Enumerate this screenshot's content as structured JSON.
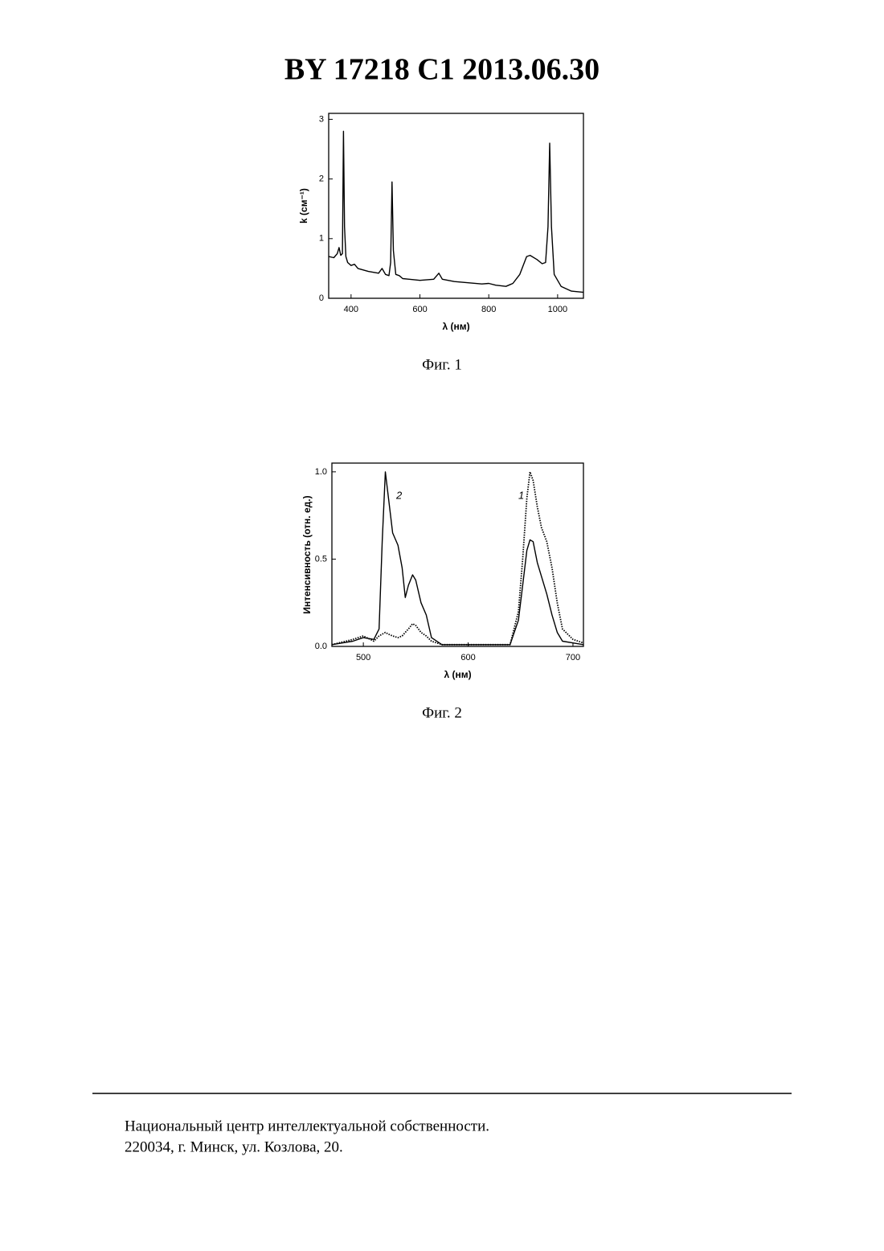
{
  "header": {
    "title": "BY  17218  C1  2013.06.30"
  },
  "chart_data": [
    {
      "type": "line",
      "caption": "Фиг. 1",
      "xlabel": "λ  (нм)",
      "ylabel": "k  (см⁻¹)",
      "x": [
        335,
        350,
        360,
        365,
        370,
        375,
        378,
        381,
        385,
        390,
        400,
        410,
        420,
        450,
        480,
        490,
        500,
        510,
        515,
        519,
        523,
        530,
        540,
        550,
        600,
        640,
        655,
        665,
        700,
        780,
        800,
        820,
        850,
        870,
        890,
        910,
        920,
        940,
        955,
        965,
        972,
        977,
        982,
        990,
        1010,
        1040,
        1075
      ],
      "values": [
        0.7,
        0.68,
        0.75,
        0.85,
        0.72,
        0.75,
        2.8,
        1.2,
        0.7,
        0.6,
        0.55,
        0.57,
        0.5,
        0.45,
        0.42,
        0.5,
        0.4,
        0.38,
        0.6,
        1.95,
        0.8,
        0.4,
        0.38,
        0.33,
        0.3,
        0.32,
        0.42,
        0.32,
        0.28,
        0.24,
        0.25,
        0.22,
        0.2,
        0.25,
        0.4,
        0.7,
        0.72,
        0.65,
        0.58,
        0.6,
        1.2,
        2.6,
        1.2,
        0.4,
        0.2,
        0.12,
        0.1
      ],
      "color": "#000000",
      "xlim": [
        335,
        1075
      ],
      "xticks": [
        400,
        600,
        800,
        1000
      ],
      "ylim": [
        0,
        3.1
      ],
      "yticks": [
        0,
        1,
        2,
        3
      ]
    },
    {
      "type": "line",
      "caption": "Фиг. 2",
      "xlabel": "λ  (нм)",
      "ylabel": "Интенсивность  (отн. ед.)",
      "x": [
        470,
        490,
        500,
        510,
        515,
        518,
        521,
        524,
        528,
        533,
        537,
        540,
        543,
        547,
        550,
        555,
        560,
        565,
        575,
        600,
        640,
        648,
        652,
        656,
        659,
        662,
        666,
        670,
        675,
        680,
        685,
        690,
        700,
        710
      ],
      "series": [
        {
          "name": "2",
          "color": "#000000",
          "style": "solid",
          "values": [
            0.01,
            0.03,
            0.05,
            0.04,
            0.1,
            0.6,
            1.0,
            0.85,
            0.65,
            0.58,
            0.45,
            0.28,
            0.35,
            0.41,
            0.38,
            0.25,
            0.18,
            0.05,
            0.01,
            0.01,
            0.01,
            0.15,
            0.35,
            0.55,
            0.61,
            0.6,
            0.48,
            0.4,
            0.3,
            0.18,
            0.08,
            0.03,
            0.02,
            0.01
          ]
        },
        {
          "name": "1",
          "color": "#000000",
          "style": "dotted",
          "values": [
            0.01,
            0.04,
            0.06,
            0.03,
            0.06,
            0.07,
            0.08,
            0.07,
            0.06,
            0.05,
            0.06,
            0.08,
            0.1,
            0.13,
            0.12,
            0.08,
            0.06,
            0.03,
            0.01,
            0.01,
            0.01,
            0.2,
            0.5,
            0.85,
            1.0,
            0.95,
            0.8,
            0.68,
            0.6,
            0.45,
            0.25,
            0.1,
            0.04,
            0.02
          ]
        }
      ],
      "xlim": [
        470,
        710
      ],
      "xticks": [
        500,
        600,
        700
      ],
      "ylim": [
        0,
        1.05
      ],
      "yticks": [
        {
          "value": 0,
          "label": "0.0"
        },
        0.5,
        {
          "value": 1,
          "label": "1.0"
        }
      ]
    }
  ],
  "footer": {
    "lines": [
      "Национальный центр интеллектуальной собственности.",
      "220034, г. Минск, ул. Козлова, 20."
    ]
  }
}
